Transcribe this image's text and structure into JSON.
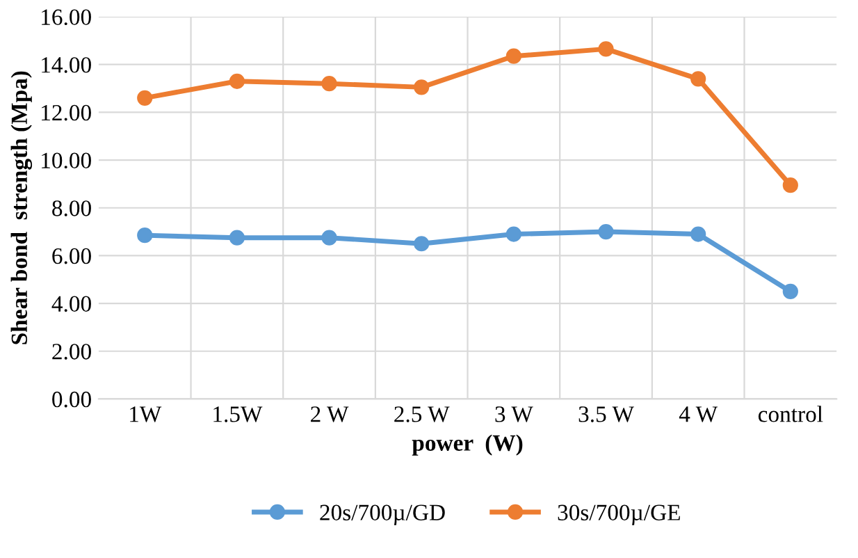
{
  "chart_data": {
    "type": "line",
    "xlabel": "power  (W)",
    "ylabel": "Shear bond  strength (Mpa)",
    "categories": [
      "1W",
      "1.5W",
      "2 W",
      "2.5 W",
      "3 W",
      "3.5 W",
      "4 W",
      "control"
    ],
    "series": [
      {
        "name": "20s/700µ/GD",
        "color": "#5b9bd5",
        "values": [
          6.85,
          6.75,
          6.75,
          6.5,
          6.9,
          7.0,
          6.9,
          4.5
        ]
      },
      {
        "name": "30s/700µ/GE",
        "color": "#ed7d31",
        "values": [
          12.6,
          13.3,
          13.2,
          13.05,
          14.35,
          14.65,
          13.4,
          8.95
        ]
      }
    ],
    "ylim": [
      0,
      16
    ],
    "yticks": [
      {
        "value": 0,
        "label": "0.00"
      },
      {
        "value": 2,
        "label": "2.00"
      },
      {
        "value": 4,
        "label": "4.00"
      },
      {
        "value": 6,
        "label": "6.00"
      },
      {
        "value": 8,
        "label": "8.00"
      },
      {
        "value": 10,
        "label": "10.00"
      },
      {
        "value": 12,
        "label": "12.00"
      },
      {
        "value": 14,
        "label": "14.00"
      },
      {
        "value": 16,
        "label": "16.00"
      }
    ],
    "grid": true,
    "legend": "bottom",
    "marker": "circle",
    "line_style": "solid"
  }
}
